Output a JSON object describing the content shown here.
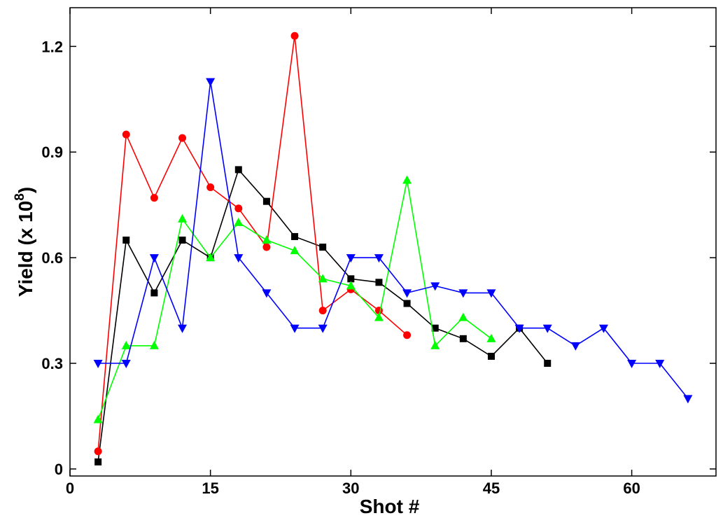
{
  "chart_data": {
    "type": "line",
    "title": "",
    "xlabel": "Shot #",
    "ylabel": {
      "prefix": "Yield (x 10",
      "superscript": "8",
      "suffix": ")"
    },
    "xlim": [
      0,
      69
    ],
    "ylim": [
      -0.02,
      1.31
    ],
    "xticks": [
      0,
      15,
      30,
      45,
      60
    ],
    "yticks": [
      0,
      0.3,
      0.6,
      0.9,
      1.2
    ],
    "xtick_labels": [
      "0",
      "15",
      "30",
      "45",
      "60"
    ],
    "ytick_labels": [
      "0",
      "0.3",
      "0.6",
      "0.9",
      "1.2"
    ],
    "grid": false,
    "legend": "none",
    "series": [
      {
        "color": "#000000",
        "marker": "square",
        "x": [
          3,
          6,
          9,
          12,
          15,
          18,
          21,
          24,
          27,
          30,
          33,
          36,
          39,
          42,
          45,
          48,
          51
        ],
        "y": [
          0.02,
          0.65,
          0.5,
          0.65,
          0.6,
          0.85,
          0.76,
          0.66,
          0.63,
          0.54,
          0.53,
          0.47,
          0.4,
          0.37,
          0.32,
          0.4,
          0.3
        ]
      },
      {
        "color": "#ff0000",
        "marker": "circle",
        "x": [
          3,
          6,
          9,
          12,
          15,
          18,
          21,
          24,
          27,
          30,
          33,
          36
        ],
        "y": [
          0.05,
          0.95,
          0.77,
          0.94,
          0.8,
          0.74,
          0.63,
          1.23,
          0.45,
          0.51,
          0.45,
          0.38
        ]
      },
      {
        "color": "#00ff00",
        "marker": "triangle-up",
        "x": [
          3,
          6,
          9,
          12,
          15,
          18,
          21,
          24,
          27,
          30,
          33,
          36,
          39,
          42,
          45
        ],
        "y": [
          0.14,
          0.35,
          0.35,
          0.71,
          0.6,
          0.7,
          0.65,
          0.62,
          0.54,
          0.52,
          0.43,
          0.82,
          0.35,
          0.43,
          0.37
        ]
      },
      {
        "color": "#0000ff",
        "marker": "triangle-down",
        "x": [
          3,
          6,
          9,
          12,
          15,
          18,
          21,
          24,
          27,
          30,
          33,
          36,
          39,
          42,
          45,
          48,
          51,
          54,
          57,
          60,
          63,
          66
        ],
        "y": [
          0.3,
          0.3,
          0.6,
          0.4,
          1.1,
          0.6,
          0.5,
          0.4,
          0.4,
          0.6,
          0.6,
          0.5,
          0.52,
          0.5,
          0.5,
          0.4,
          0.4,
          0.35,
          0.4,
          0.3,
          0.3,
          0.2
        ]
      }
    ]
  }
}
